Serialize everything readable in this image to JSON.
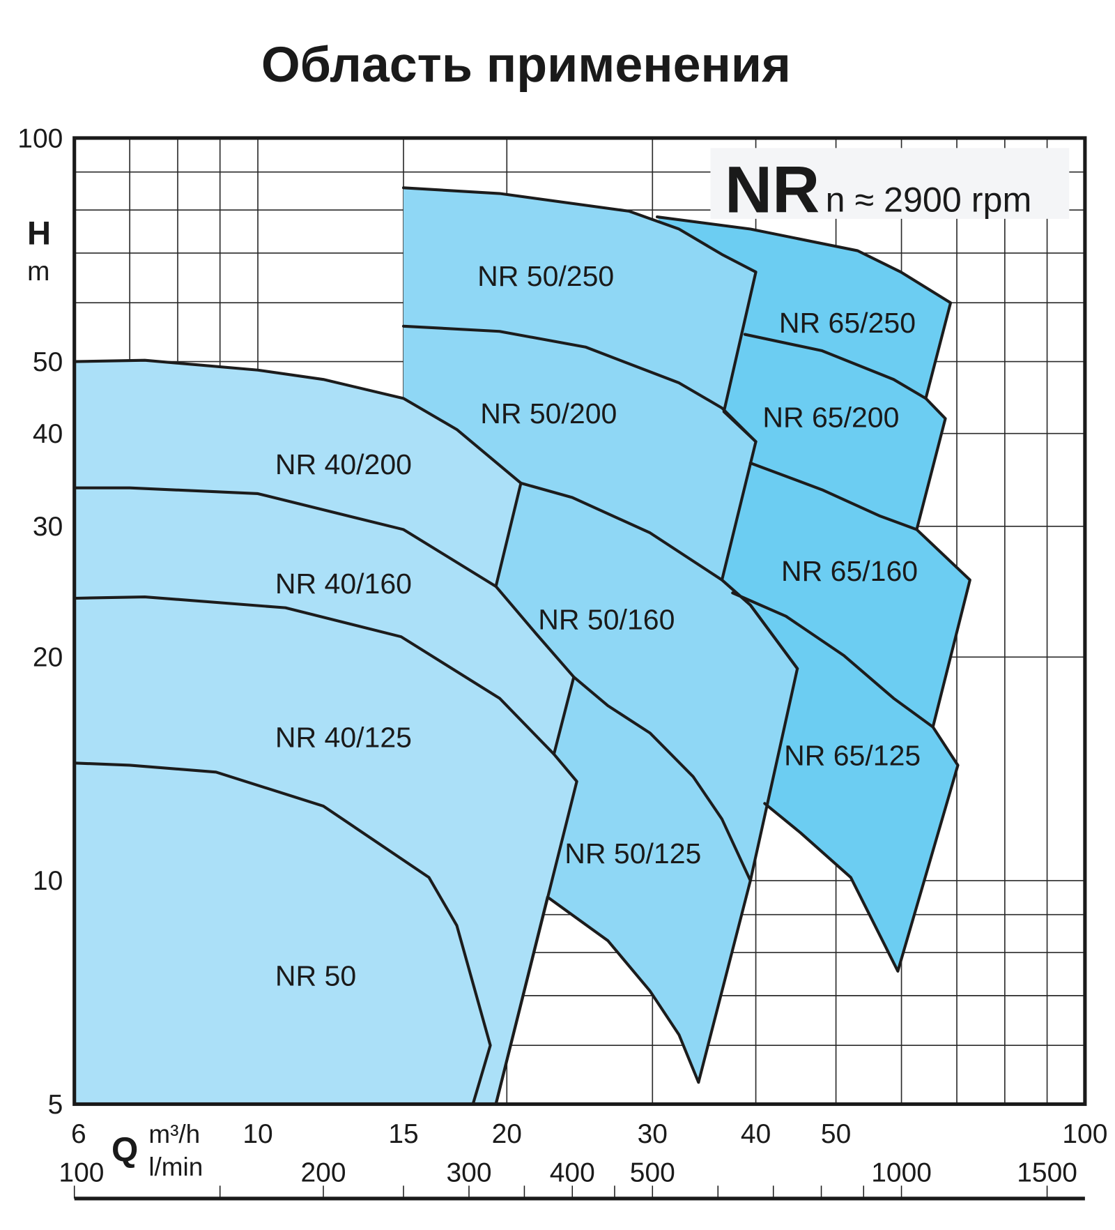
{
  "chart_data": {
    "type": "area",
    "title": "Область применения",
    "badge": {
      "series": "NR",
      "speed": "n ≈ 2900 rpm",
      "background": "#f4f5f7"
    },
    "grid": true,
    "y_axis": {
      "label": "H",
      "unit": "m",
      "scale": "log",
      "range": [
        5,
        100
      ],
      "ticks": [
        5,
        10,
        20,
        30,
        40,
        50,
        100
      ],
      "gridlines": [
        6,
        7,
        8,
        9,
        10,
        20,
        30,
        40,
        50,
        60,
        70,
        80,
        90
      ]
    },
    "x_axis": {
      "label": "Q",
      "unit": "m³/h",
      "scale": "log",
      "range": [
        6,
        100
      ],
      "ticks": [
        6,
        10,
        15,
        20,
        30,
        40,
        50,
        100
      ],
      "gridlines": [
        7,
        8,
        9,
        10,
        15,
        20,
        30,
        40,
        50,
        60,
        70,
        80,
        90
      ]
    },
    "x2_axis": {
      "unit": "l/min",
      "ticks": [
        100,
        200,
        300,
        400,
        500,
        1000,
        1500
      ],
      "minor_ticks": [
        100,
        150,
        200,
        250,
        300,
        350,
        400,
        450,
        500,
        600,
        700,
        800,
        900,
        1000,
        1500
      ]
    },
    "regions": [
      {
        "fill": "#6ccdf2",
        "boundary": [
          [
            30.4,
            78.3
          ],
          [
            39.4,
            75.4
          ],
          [
            53.1,
            70.5
          ],
          [
            59.9,
            66
          ],
          [
            68.8,
            60
          ],
          [
            64.2,
            44.6
          ],
          [
            67.8,
            41.9
          ],
          [
            62.6,
            29.7
          ],
          [
            72.6,
            25.4
          ],
          [
            65.5,
            16.1
          ],
          [
            70.2,
            14.3
          ],
          [
            59.4,
            7.55
          ],
          [
            52.1,
            10.1
          ],
          [
            45.3,
            11.6
          ],
          [
            41,
            12.7
          ],
          [
            39.4,
            15.1
          ],
          [
            35.7,
            25.4
          ],
          [
            35.7,
            42.8
          ],
          [
            35,
            57.1
          ]
        ],
        "edge": [
          [
            30.4,
            78.3
          ],
          [
            39.4,
            75.4
          ],
          [
            53.1,
            70.5
          ],
          [
            59.9,
            66
          ],
          [
            68.8,
            60
          ],
          [
            64.2,
            44.6
          ],
          [
            67.8,
            41.9
          ],
          [
            62.6,
            29.7
          ],
          [
            72.6,
            25.4
          ],
          [
            65.5,
            16.1
          ],
          [
            70.2,
            14.3
          ],
          [
            59.4,
            7.55
          ],
          [
            52.1,
            10.1
          ],
          [
            45.3,
            11.6
          ],
          [
            41,
            12.7
          ]
        ],
        "curves": [
          [
            [
              38.8,
              54.4
            ],
            [
              48.1,
              51.7
            ],
            [
              58.7,
              47.3
            ],
            [
              64.2,
              44.6
            ]
          ],
          [
            [
              39.4,
              36.5
            ],
            [
              48.1,
              33.6
            ],
            [
              56.4,
              31
            ],
            [
              62.6,
              29.7
            ]
          ],
          [
            [
              37.5,
              24.4
            ],
            [
              43.5,
              22.7
            ],
            [
              51.1,
              20.1
            ],
            [
              58.7,
              17.6
            ],
            [
              65.5,
              16.1
            ]
          ]
        ],
        "labels": [
          "NR 65/250",
          "NR 65/200",
          "NR 65/160",
          "NR 65/125"
        ]
      },
      {
        "fill": "#8fd7f5",
        "boundary": [
          [
            15,
            5
          ],
          [
            15,
            85.7
          ],
          [
            19.6,
            84.2
          ],
          [
            28.1,
            79.7
          ],
          [
            32.3,
            75.4
          ],
          [
            36.4,
            69.7
          ],
          [
            40,
            66
          ],
          [
            36.6,
            42.8
          ],
          [
            40,
            39
          ],
          [
            36.4,
            25.4
          ],
          [
            39.4,
            23.5
          ],
          [
            44.9,
            19.3
          ],
          [
            39.4,
            10
          ],
          [
            34.1,
            5.35
          ],
          [
            32.3,
            6.2
          ],
          [
            29.8,
            7.1
          ],
          [
            26.5,
            8.3
          ],
          [
            22.4,
            9.5
          ],
          [
            19.4,
            5
          ]
        ],
        "edge": [
          [
            15,
            85.7
          ],
          [
            19.6,
            84.2
          ],
          [
            28.1,
            79.7
          ],
          [
            32.3,
            75.4
          ],
          [
            36.4,
            69.7
          ],
          [
            40,
            66
          ],
          [
            36.6,
            42.8
          ],
          [
            40,
            39
          ],
          [
            36.4,
            25.4
          ],
          [
            39.4,
            23.5
          ],
          [
            44.9,
            19.3
          ],
          [
            39.4,
            10
          ],
          [
            34.1,
            5.35
          ],
          [
            32.3,
            6.2
          ],
          [
            29.8,
            7.1
          ],
          [
            26.5,
            8.3
          ],
          [
            22.4,
            9.5
          ],
          [
            19.4,
            5
          ]
        ],
        "curves": [
          [
            [
              15,
              55.8
            ],
            [
              19.6,
              54.9
            ],
            [
              24.9,
              52.3
            ],
            [
              32.3,
              46.8
            ],
            [
              36.4,
              43.3
            ],
            [
              40,
              39
            ]
          ],
          [
            [
              20.8,
              34.3
            ],
            [
              24,
              32.8
            ],
            [
              29.8,
              29.4
            ],
            [
              36.4,
              25.4
            ],
            [
              39.4,
              23.5
            ],
            [
              44.9,
              19.3
            ]
          ],
          [
            [
              24.1,
              18.8
            ],
            [
              26.5,
              17.2
            ],
            [
              29.8,
              15.8
            ],
            [
              33.6,
              13.8
            ],
            [
              36.4,
              12.1
            ],
            [
              39.4,
              10
            ]
          ]
        ],
        "labels": [
          "NR 50/250",
          "NR 50/200",
          "NR 50/160",
          "NR 50/125"
        ]
      },
      {
        "fill": "#abe0f8",
        "boundary": [
          [
            6,
            5
          ],
          [
            6,
            50
          ],
          [
            7.3,
            50.2
          ],
          [
            10,
            48.7
          ],
          [
            12,
            47.3
          ],
          [
            15,
            44.6
          ],
          [
            17.4,
            40.5
          ],
          [
            20.8,
            34.3
          ],
          [
            19.4,
            24.9
          ],
          [
            21.7,
            21.5
          ],
          [
            24.1,
            18.8
          ],
          [
            22.8,
            14.8
          ],
          [
            24.3,
            13.6
          ],
          [
            19.4,
            5
          ]
        ],
        "edge": [
          [
            6,
            50
          ],
          [
            7.3,
            50.2
          ],
          [
            10,
            48.7
          ],
          [
            12,
            47.3
          ],
          [
            15,
            44.6
          ],
          [
            17.4,
            40.5
          ],
          [
            20.8,
            34.3
          ],
          [
            19.4,
            24.9
          ],
          [
            21.7,
            21.5
          ],
          [
            24.1,
            18.8
          ],
          [
            22.8,
            14.8
          ],
          [
            24.3,
            13.6
          ],
          [
            19.4,
            5
          ]
        ],
        "curves": [
          [
            [
              6,
              33.8
            ],
            [
              7,
              33.8
            ],
            [
              10,
              33.2
            ],
            [
              15,
              29.7
            ],
            [
              19.4,
              24.9
            ]
          ],
          [
            [
              6,
              24
            ],
            [
              7.3,
              24.1
            ],
            [
              10.8,
              23.3
            ],
            [
              14.9,
              21.3
            ],
            [
              19.6,
              17.6
            ],
            [
              22.8,
              14.8
            ]
          ],
          [
            [
              6,
              14.4
            ],
            [
              7,
              14.3
            ],
            [
              8.9,
              14
            ],
            [
              12,
              12.6
            ],
            [
              16.1,
              10.1
            ],
            [
              17.4,
              8.7
            ],
            [
              19.1,
              6
            ],
            [
              18.2,
              5
            ]
          ]
        ],
        "labels": [
          "NR 40/200",
          "NR 40/160",
          "NR 40/125",
          "NR 50"
        ]
      }
    ],
    "highlight_label": {
      "text": "NR 50",
      "color": "#e8383a"
    }
  }
}
